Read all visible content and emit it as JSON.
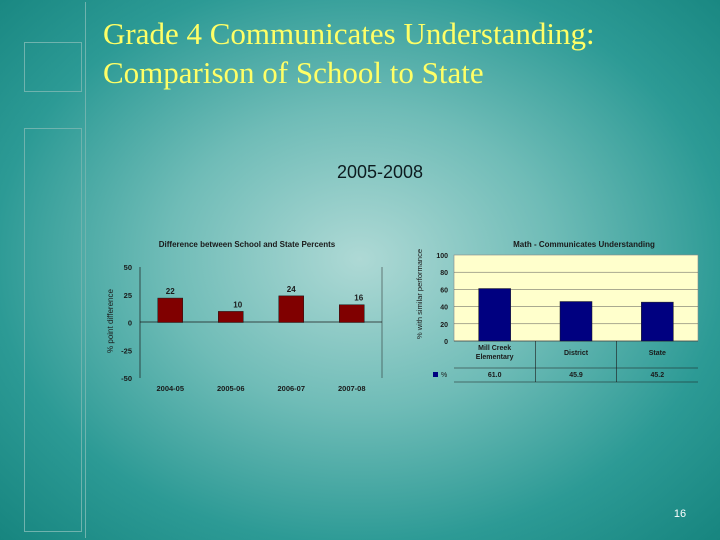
{
  "slide": {
    "title_line1": "Grade 4 Communicates Understanding:",
    "title_line2": "Comparison of School to State",
    "subtitle": "2005-2008",
    "page_number": "16"
  },
  "colors": {
    "title": "#ffff66",
    "bar_left": "#800000",
    "bar_right": "#000080",
    "plot_bg": "#ffffcc",
    "label": "#ffffcc"
  },
  "chart_data": [
    {
      "type": "bar",
      "title": "Difference between School and State Percents",
      "ylabel": "% point difference",
      "xlabel": "",
      "categories": [
        "2004-05",
        "2005-06",
        "2006-07",
        "2007-08"
      ],
      "values": [
        22,
        10,
        24,
        16
      ],
      "value_labels": [
        "22",
        "10",
        "24",
        "16"
      ],
      "ylim": [
        -50,
        50
      ],
      "yticks": [
        50,
        25,
        0,
        -25,
        -50
      ],
      "ytick_labels": [
        "50",
        "25",
        "0",
        "-25",
        "-50"
      ],
      "grid": false
    },
    {
      "type": "bar",
      "title": "Math - Communicates Understanding",
      "ylabel": "% with similar performance",
      "categories": [
        "Mill Creek Elementary",
        "District",
        "State"
      ],
      "series": [
        {
          "name": "%",
          "values": [
            61.0,
            45.9,
            45.2
          ]
        }
      ],
      "table_values": [
        "61.0",
        "45.9",
        "45.2"
      ],
      "ylim": [
        0,
        100
      ],
      "yticks": [
        0,
        20,
        40,
        60,
        80,
        100
      ],
      "ytick_labels": [
        "0",
        "20",
        "40",
        "60",
        "80",
        "100"
      ],
      "grid": true,
      "legend": "bottom-left (data table)"
    }
  ]
}
